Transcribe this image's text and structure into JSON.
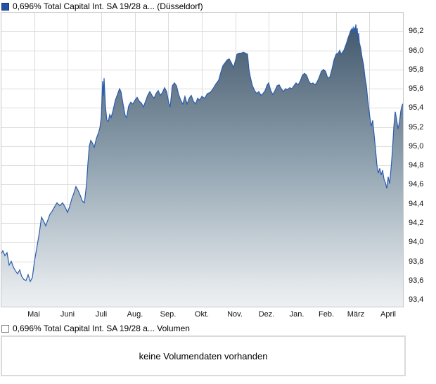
{
  "header": {
    "title": "0,696% Total Capital Int. SA 19/28 a... (Düsseldorf)",
    "legend_marker_color": "#2151a8",
    "legend_marker_border": "#173a78"
  },
  "volume_section": {
    "title": "0,696% Total Capital Int. SA 19/28 a... Volumen",
    "legend_marker_color": "#ffffff",
    "legend_marker_border": "#7d7d7d",
    "message": "keine Volumendaten vorhanden"
  },
  "chart_data": {
    "type": "area",
    "title": "0,696% Total Capital Int. SA 19/28 a... (Düsseldorf)",
    "grid": true,
    "legend_position": "top-left",
    "line_color": "#2b5cad",
    "fill_gradient": [
      "#42586c",
      "#93a5b2",
      "#e7ebee"
    ],
    "grid_color": "#dcdcdc",
    "border_color": "#c6c6c6",
    "ylim": [
      93.32,
      96.4
    ],
    "y_ticks": [
      93.4,
      93.6,
      93.8,
      94.0,
      94.2,
      94.4,
      94.6,
      94.8,
      95.0,
      95.2,
      95.4,
      95.6,
      95.8,
      96.0,
      96.2
    ],
    "x_tick_labels": [
      "Mai",
      "Juni",
      "Juli",
      "Aug.",
      "Sep.",
      "Okt.",
      "Nov.",
      "Dez.",
      "Jan.",
      "Feb.",
      "März",
      "April"
    ],
    "x_label_pos": [
      47,
      95,
      143,
      191,
      238,
      286,
      333,
      378,
      421,
      463,
      505,
      551
    ],
    "x_grid_pos": [
      47.7,
      95.3,
      143,
      190.7,
      238.3,
      286,
      333.7,
      381.3,
      429,
      476.7,
      524.3,
      571.5
    ],
    "series": [
      {
        "name": "0,696% Total Capital Int. SA 19/28 a...",
        "points": [
          [
            0,
            93.87
          ],
          [
            3,
            93.91
          ],
          [
            6,
            93.86
          ],
          [
            9,
            93.89
          ],
          [
            12,
            93.76
          ],
          [
            15,
            93.8
          ],
          [
            18,
            93.74
          ],
          [
            21,
            93.7
          ],
          [
            24,
            93.67
          ],
          [
            27,
            93.71
          ],
          [
            30,
            93.64
          ],
          [
            33,
            93.61
          ],
          [
            36,
            93.6
          ],
          [
            39,
            93.66
          ],
          [
            42,
            93.59
          ],
          [
            45,
            93.63
          ],
          [
            48,
            93.8
          ],
          [
            52,
            93.97
          ],
          [
            55,
            94.1
          ],
          [
            58,
            94.26
          ],
          [
            61,
            94.22
          ],
          [
            64,
            94.17
          ],
          [
            67,
            94.23
          ],
          [
            70,
            94.29
          ],
          [
            73,
            94.32
          ],
          [
            76,
            94.36
          ],
          [
            80,
            94.41
          ],
          [
            84,
            94.38
          ],
          [
            88,
            94.41
          ],
          [
            92,
            94.36
          ],
          [
            95,
            94.31
          ],
          [
            98,
            94.37
          ],
          [
            101,
            94.45
          ],
          [
            104,
            94.51
          ],
          [
            107,
            94.58
          ],
          [
            110,
            94.54
          ],
          [
            113,
            94.49
          ],
          [
            116,
            94.43
          ],
          [
            119,
            94.41
          ],
          [
            122,
            94.6
          ],
          [
            124,
            94.82
          ],
          [
            126,
            95.0
          ],
          [
            128,
            95.06
          ],
          [
            130,
            95.04
          ],
          [
            133,
            94.99
          ],
          [
            136,
            95.08
          ],
          [
            139,
            95.14
          ],
          [
            141,
            95.19
          ],
          [
            143,
            95.3
          ],
          [
            145,
            95.68
          ],
          [
            146,
            95.52
          ],
          [
            147,
            95.71
          ],
          [
            149,
            95.41
          ],
          [
            151,
            95.27
          ],
          [
            153,
            95.26
          ],
          [
            155,
            95.33
          ],
          [
            157,
            95.3
          ],
          [
            160,
            95.38
          ],
          [
            163,
            95.48
          ],
          [
            166,
            95.54
          ],
          [
            169,
            95.6
          ],
          [
            171,
            95.57
          ],
          [
            174,
            95.44
          ],
          [
            177,
            95.32
          ],
          [
            179,
            95.3
          ],
          [
            182,
            95.42
          ],
          [
            185,
            95.46
          ],
          [
            188,
            95.44
          ],
          [
            191,
            95.48
          ],
          [
            194,
            95.51
          ],
          [
            197,
            95.47
          ],
          [
            200,
            95.45
          ],
          [
            203,
            95.41
          ],
          [
            206,
            95.47
          ],
          [
            209,
            95.53
          ],
          [
            212,
            95.57
          ],
          [
            215,
            95.53
          ],
          [
            218,
            95.5
          ],
          [
            221,
            95.55
          ],
          [
            224,
            95.58
          ],
          [
            227,
            95.53
          ],
          [
            230,
            95.56
          ],
          [
            233,
            95.61
          ],
          [
            236,
            95.57
          ],
          [
            239,
            95.45
          ],
          [
            241,
            95.41
          ],
          [
            244,
            95.63
          ],
          [
            247,
            95.66
          ],
          [
            250,
            95.63
          ],
          [
            253,
            95.54
          ],
          [
            256,
            95.48
          ],
          [
            259,
            95.44
          ],
          [
            262,
            95.52
          ],
          [
            265,
            95.44
          ],
          [
            268,
            95.5
          ],
          [
            271,
            95.53
          ],
          [
            274,
            95.47
          ],
          [
            277,
            95.44
          ],
          [
            280,
            95.5
          ],
          [
            283,
            95.48
          ],
          [
            286,
            95.52
          ],
          [
            290,
            95.5
          ],
          [
            294,
            95.55
          ],
          [
            298,
            95.56
          ],
          [
            302,
            95.6
          ],
          [
            306,
            95.65
          ],
          [
            310,
            95.69
          ],
          [
            313,
            95.77
          ],
          [
            316,
            95.84
          ],
          [
            319,
            95.87
          ],
          [
            322,
            95.9
          ],
          [
            325,
            95.91
          ],
          [
            328,
            95.87
          ],
          [
            331,
            95.82
          ],
          [
            334,
            95.9
          ],
          [
            336,
            95.96
          ],
          [
            339,
            95.97
          ],
          [
            342,
            95.97
          ],
          [
            345,
            95.98
          ],
          [
            348,
            95.97
          ],
          [
            351,
            95.96
          ],
          [
            353,
            95.8
          ],
          [
            355,
            95.72
          ],
          [
            358,
            95.63
          ],
          [
            361,
            95.58
          ],
          [
            364,
            95.55
          ],
          [
            367,
            95.57
          ],
          [
            370,
            95.53
          ],
          [
            373,
            95.55
          ],
          [
            376,
            95.58
          ],
          [
            379,
            95.64
          ],
          [
            381,
            95.66
          ],
          [
            384,
            95.58
          ],
          [
            387,
            95.54
          ],
          [
            390,
            95.58
          ],
          [
            393,
            95.63
          ],
          [
            396,
            95.64
          ],
          [
            399,
            95.6
          ],
          [
            402,
            95.57
          ],
          [
            405,
            95.6
          ],
          [
            408,
            95.59
          ],
          [
            411,
            95.61
          ],
          [
            414,
            95.6
          ],
          [
            417,
            95.63
          ],
          [
            420,
            95.66
          ],
          [
            423,
            95.64
          ],
          [
            426,
            95.68
          ],
          [
            429,
            95.74
          ],
          [
            432,
            95.76
          ],
          [
            435,
            95.74
          ],
          [
            438,
            95.68
          ],
          [
            441,
            95.65
          ],
          [
            444,
            95.66
          ],
          [
            447,
            95.64
          ],
          [
            450,
            95.67
          ],
          [
            453,
            95.72
          ],
          [
            456,
            95.78
          ],
          [
            459,
            95.8
          ],
          [
            462,
            95.78
          ],
          [
            465,
            95.71
          ],
          [
            468,
            95.72
          ],
          [
            471,
            95.8
          ],
          [
            474,
            95.9
          ],
          [
            477,
            95.96
          ],
          [
            480,
            95.97
          ],
          [
            482,
            96.0
          ],
          [
            484,
            95.96
          ],
          [
            486,
            95.98
          ],
          [
            488,
            96.0
          ],
          [
            490,
            96.04
          ],
          [
            492,
            96.08
          ],
          [
            494,
            96.13
          ],
          [
            496,
            96.17
          ],
          [
            498,
            96.21
          ],
          [
            500,
            96.23
          ],
          [
            501,
            96.18
          ],
          [
            502,
            96.24
          ],
          [
            504,
            96.21
          ],
          [
            505,
            96.27
          ],
          [
            506,
            96.18
          ],
          [
            507,
            96.23
          ],
          [
            508,
            96.1
          ],
          [
            509,
            96.18
          ],
          [
            510,
            96.08
          ],
          [
            512,
            96.02
          ],
          [
            514,
            95.92
          ],
          [
            516,
            95.85
          ],
          [
            518,
            95.72
          ],
          [
            520,
            95.63
          ],
          [
            522,
            95.48
          ],
          [
            525,
            95.3
          ],
          [
            527,
            95.21
          ],
          [
            529,
            95.27
          ],
          [
            531,
            95.12
          ],
          [
            533,
            94.97
          ],
          [
            535,
            94.8
          ],
          [
            537,
            94.72
          ],
          [
            539,
            94.77
          ],
          [
            541,
            94.7
          ],
          [
            543,
            94.75
          ],
          [
            545,
            94.66
          ],
          [
            547,
            94.62
          ],
          [
            549,
            94.56
          ],
          [
            551,
            94.68
          ],
          [
            553,
            94.61
          ],
          [
            555,
            94.76
          ],
          [
            557,
            94.95
          ],
          [
            559,
            95.2
          ],
          [
            561,
            95.36
          ],
          [
            563,
            95.28
          ],
          [
            565,
            95.18
          ],
          [
            567,
            95.25
          ],
          [
            569,
            95.37
          ],
          [
            571,
            95.43
          ],
          [
            573,
            95.45
          ]
        ]
      }
    ]
  }
}
